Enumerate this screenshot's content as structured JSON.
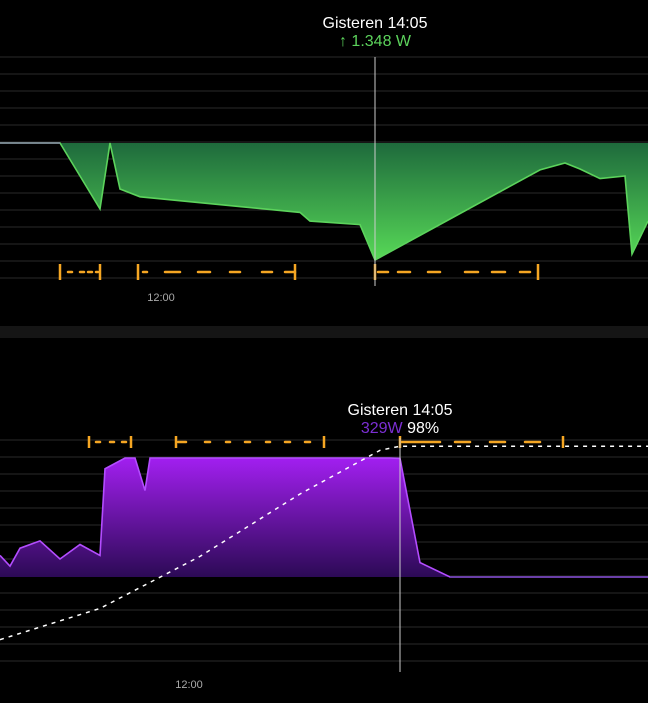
{
  "top_chart": {
    "tooltip_title": "Gisteren 14:05",
    "tooltip_arrow": "↑",
    "tooltip_value": "1.348 W",
    "x_tick_label": "12:00",
    "series_color": "#5cd35c",
    "cursor_color": "#cccccc",
    "dash_color": "#f5a623",
    "arrow_icon": "arrow-up-icon"
  },
  "bottom_chart": {
    "tooltip_title": "Gisteren 14:05",
    "tooltip_value": "329W",
    "tooltip_percent": "98%",
    "x_tick_label": "12:00",
    "series_color": "#9b1fe8",
    "soc_line_color": "#ffffff",
    "dash_color": "#f5a623"
  },
  "chart_data": [
    {
      "type": "area",
      "x_unit": "time of day",
      "x_tick_labels": [
        "12:00"
      ],
      "series": [
        {
          "values_description_points": [
            [
              0,
              0
            ],
            [
              60,
              0
            ],
            [
              100,
              760
            ],
            [
              110,
              0
            ],
            [
              120,
              530
            ],
            [
              140,
              620
            ],
            [
              300,
              800
            ],
            [
              310,
              900
            ],
            [
              360,
              940
            ],
            [
              375,
              1348
            ],
            [
              540,
              310
            ],
            [
              565,
              230
            ],
            [
              580,
              300
            ],
            [
              600,
              410
            ],
            [
              625,
              380
            ],
            [
              632,
              1280
            ],
            [
              648,
              900
            ]
          ]
        }
      ],
      "cursor": {
        "label": "Gisteren 14:05",
        "value": "1.348 W"
      },
      "grid": true
    },
    {
      "type": "area",
      "x_unit": "time of day",
      "x_tick_labels": [
        "12:00"
      ],
      "series": [
        {
          "values_description_points": [
            [
              0,
              60
            ],
            [
              10,
              30
            ],
            [
              20,
              80
            ],
            [
              40,
              100
            ],
            [
              60,
              50
            ],
            [
              80,
              90
            ],
            [
              100,
              60
            ],
            [
              105,
              300
            ],
            [
              125,
              330
            ],
            [
              135,
              330
            ],
            [
              145,
              240
            ],
            [
              150,
              330
            ],
            [
              390,
              330
            ],
            [
              400,
              329
            ],
            [
              420,
              40
            ],
            [
              450,
              0
            ],
            [
              648,
              0
            ]
          ]
        },
        {
          "values_description_points": [
            [
              0,
              5
            ],
            [
              100,
              20
            ],
            [
              200,
              45
            ],
            [
              300,
              75
            ],
            [
              380,
              96
            ],
            [
              400,
              98
            ],
            [
              648,
              98
            ]
          ]
        }
      ],
      "cursor": {
        "label": "Gisteren 14:05",
        "value": "329W",
        "percent": "98%"
      },
      "grid": true
    }
  ]
}
